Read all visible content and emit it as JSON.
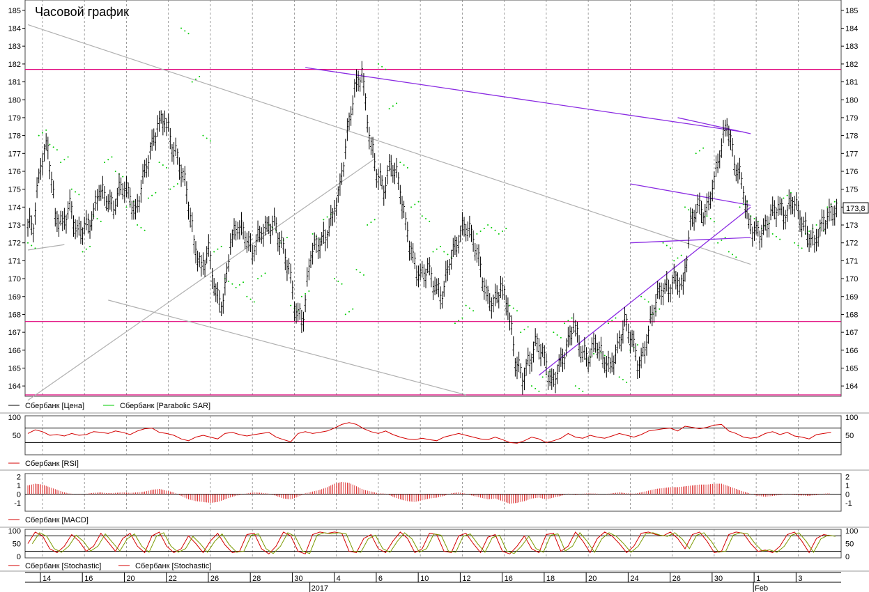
{
  "colors": {
    "price": "#000000",
    "sar": "#00cc00",
    "indicator": "#d40000",
    "stoch_signal": "#7a9a00",
    "hline": "#e0007a",
    "trend_purple": "#8a2be2",
    "trend_gray": "#b0b0b0",
    "grid": "#888888"
  },
  "chart_data": [
    {
      "type": "candlestick",
      "title": "Часовой график",
      "ylim": [
        163.5,
        185.5
      ],
      "yticks": [
        164,
        165,
        166,
        167,
        168,
        169,
        170,
        171,
        172,
        173,
        174,
        175,
        176,
        177,
        178,
        179,
        180,
        181,
        182,
        183,
        184,
        185
      ],
      "last_price_label": "173,8",
      "legend": [
        "Сбербанк [Цена]",
        "Сбербанк [Parabolic SAR]"
      ],
      "series": [
        {
          "name": "Сбербанк [Цена]",
          "indicator": "price",
          "x": [
            0,
            2,
            4,
            6,
            8,
            10,
            12,
            14,
            16,
            18,
            20,
            22,
            24,
            26,
            28,
            30,
            32,
            34,
            36,
            38,
            40,
            42,
            44,
            46,
            48,
            50,
            52,
            54,
            56,
            58,
            60,
            62,
            64,
            66,
            68,
            70,
            72,
            74,
            76,
            78,
            80,
            82,
            84,
            86,
            88,
            90,
            92,
            94,
            96,
            98,
            100,
            102,
            104,
            106,
            108,
            110,
            112,
            114,
            116,
            118,
            120,
            122,
            124,
            126,
            128,
            130,
            132,
            134,
            136,
            138,
            140,
            142,
            144,
            146,
            148,
            150,
            152,
            154,
            156,
            158,
            160,
            162,
            164,
            166,
            168,
            170,
            172,
            174,
            176,
            178,
            180,
            182,
            184,
            186,
            188,
            190,
            192,
            194,
            196,
            198
          ],
          "close": [
            173,
            176.5,
            177.5,
            173.5,
            173,
            174,
            172.5,
            172.8,
            173.2,
            175,
            174.5,
            174,
            175.2,
            174.8,
            173.5,
            175.5,
            177,
            178.5,
            179,
            177.5,
            176.5,
            175,
            172,
            170.5,
            171.5,
            169,
            168.5,
            172,
            173,
            172.5,
            171.5,
            172.5,
            172.8,
            173,
            171.8,
            170.5,
            168,
            167.8,
            171.5,
            172,
            172.3,
            173.5,
            175,
            178,
            180.5,
            181.5,
            178,
            176,
            175,
            176.5,
            175.5,
            173,
            171,
            170,
            170.5,
            169.5,
            169,
            171,
            172,
            173,
            172.5,
            171,
            169,
            168.5,
            169.5,
            168.5,
            165.5,
            164.5,
            165.5,
            166.5,
            165.5,
            164,
            165,
            166,
            167.5,
            166,
            165.5,
            166.5,
            165.5,
            165,
            166,
            167.5,
            166.5,
            165,
            166.5,
            168.5,
            169.5,
            169.5,
            170,
            169.5,
            173,
            174,
            173.5,
            175,
            177,
            178.8,
            176.5,
            175.5,
            173,
            172.5
          ],
          "extra_x": [
            200,
            202,
            204,
            206,
            208,
            210,
            212,
            214,
            216,
            218,
            220
          ],
          "extra_close": [
            172.5,
            173.5,
            174,
            173.5,
            174.5,
            173.5,
            172.5,
            172,
            173,
            173.5,
            173.8
          ]
        }
      ],
      "sar_points": {
        "x": [
          0,
          3,
          6,
          9,
          12,
          15,
          18,
          21,
          24,
          27,
          30,
          33,
          36,
          39,
          42,
          45,
          48,
          51,
          54,
          57,
          60,
          63,
          66,
          69,
          72,
          75,
          78,
          81,
          84,
          87,
          90,
          93,
          96,
          99,
          102,
          105,
          108,
          111,
          114,
          117,
          120,
          123,
          126,
          129,
          132,
          135,
          138,
          141,
          144,
          147,
          150,
          153,
          156,
          159,
          162,
          165,
          168,
          171,
          174,
          177,
          180,
          183,
          186,
          189,
          192,
          195,
          198,
          201,
          204,
          207,
          210,
          213,
          216,
          219
        ],
        "y": [
          172,
          178,
          177.5,
          176.5,
          175,
          171.5,
          173.5,
          176.5,
          176,
          174,
          173,
          174.5,
          176.5,
          175,
          184,
          181,
          178,
          171.5,
          170,
          169.5,
          169,
          170,
          173,
          172,
          168.5,
          169,
          172.5,
          173.3,
          170,
          168,
          170.5,
          173,
          182,
          179.5,
          176.5,
          174,
          173.5,
          171.5,
          171.5,
          167.5,
          168.5,
          172.5,
          173,
          172.5,
          168.5,
          167,
          164,
          164.5,
          167,
          167.5,
          164,
          165.5,
          166,
          167.5,
          164.5,
          166,
          169,
          168,
          172,
          171,
          174,
          177,
          173.5,
          172,
          171.5,
          174,
          173.5,
          172.8,
          172.5,
          174.5,
          172,
          172.5,
          173,
          174
        ]
      },
      "lines": {
        "horizontal": [
          181.7,
          167.6,
          163.5
        ],
        "purple_trend": [
          [
            76,
            181.8,
            196,
            178.2
          ],
          [
            178,
            179,
            198,
            178.1
          ]
        ],
        "triangle": [
          [
            165,
            175.3,
            198,
            174.1
          ],
          [
            165,
            172,
            198,
            172.3
          ],
          [
            140,
            164.6,
            198,
            174
          ]
        ],
        "gray_trend": [
          [
            0,
            184.2,
            198,
            170.8
          ],
          [
            0,
            171.6,
            10,
            171.9
          ],
          [
            22,
            168.8,
            120,
            163.5
          ],
          [
            0,
            163.2,
            95,
            176.7
          ]
        ]
      }
    },
    {
      "type": "line",
      "legend": [
        "Сбербанк [RSI]"
      ],
      "ylim": [
        0,
        100
      ],
      "yticks": [
        50,
        100
      ],
      "hlines": [
        70,
        30
      ],
      "series": [
        {
          "name": "Сбербанк [RSI]",
          "values": [
            55,
            65,
            60,
            50,
            52,
            48,
            55,
            50,
            52,
            60,
            58,
            55,
            62,
            58,
            52,
            62,
            68,
            70,
            58,
            55,
            50,
            40,
            35,
            45,
            50,
            45,
            40,
            55,
            58,
            52,
            48,
            52,
            55,
            58,
            45,
            38,
            32,
            55,
            60,
            55,
            58,
            62,
            70,
            80,
            85,
            80,
            68,
            60,
            55,
            62,
            52,
            45,
            40,
            38,
            42,
            38,
            35,
            45,
            50,
            55,
            50,
            45,
            40,
            38,
            45,
            38,
            30,
            28,
            35,
            45,
            40,
            30,
            35,
            42,
            55,
            45,
            42,
            50,
            45,
            42,
            48,
            55,
            50,
            45,
            52,
            62,
            65,
            68,
            70,
            62,
            75,
            72,
            68,
            72,
            78,
            80,
            62,
            55,
            45,
            42,
            45,
            55,
            60,
            52,
            58,
            48,
            45,
            40,
            52,
            55,
            58
          ]
        }
      ]
    },
    {
      "type": "bar",
      "legend": [
        "Сбербанк [MACD]"
      ],
      "ylim": [
        -1.8,
        2.2
      ],
      "yticks": [
        2,
        1,
        0,
        -1
      ],
      "series": [
        {
          "name": "Сбербанк [MACD]",
          "values": [
            1,
            1.2,
            1.1,
            0.8,
            0.5,
            0.2,
            0.05,
            -0.05,
            0.05,
            0.15,
            0.2,
            0.1,
            0.15,
            0.2,
            0.15,
            0.2,
            0.3,
            0.5,
            0.6,
            0.4,
            0.2,
            -0.2,
            -0.6,
            -0.8,
            -0.9,
            -1,
            -0.9,
            -0.6,
            -0.3,
            -0.1,
            0.1,
            0.2,
            0.15,
            0.05,
            -0.2,
            -0.5,
            -0.6,
            -0.3,
            0.1,
            0.3,
            0.5,
            0.8,
            1.2,
            1.4,
            1.3,
            0.9,
            0.5,
            0.3,
            0.1,
            0.05,
            -0.3,
            -0.6,
            -0.8,
            -0.9,
            -0.7,
            -0.5,
            -0.4,
            -0.2,
            0.1,
            0.2,
            0.05,
            -0.2,
            -0.4,
            -0.6,
            -0.5,
            -0.8,
            -1.1,
            -1,
            -0.8,
            -0.5,
            -0.4,
            -0.6,
            -0.4,
            -0.2,
            0.05,
            -0.1,
            0.05,
            0.1,
            0.05,
            0,
            0.1,
            0.2,
            0.1,
            0.05,
            0.2,
            0.4,
            0.6,
            0.7,
            0.8,
            0.8,
            0.9,
            1,
            1.1,
            1.1,
            1.2,
            1.2,
            0.9,
            0.6,
            0.3,
            0.05,
            -0.2,
            -0.3,
            -0.2,
            -0.1,
            0.05,
            -0.1,
            -0.15,
            -0.2,
            -0.1,
            0.05,
            0.1
          ]
        }
      ]
    },
    {
      "type": "line",
      "legend": [
        "Сбербанк [Stochastic]",
        "Сбербанк [Stochastic]"
      ],
      "ylim": [
        0,
        100
      ],
      "yticks": [
        100,
        50,
        0
      ],
      "hlines": [
        80,
        20
      ],
      "series": [
        {
          "name": "Сбербанк [Stochastic]",
          "values": [
            50,
            95,
            80,
            30,
            15,
            40,
            85,
            60,
            20,
            40,
            90,
            55,
            20,
            70,
            90,
            40,
            15,
            80,
            95,
            40,
            15,
            30,
            80,
            50,
            15,
            60,
            90,
            45,
            15,
            20,
            85,
            90,
            30,
            10,
            40,
            95,
            80,
            20,
            10,
            85,
            95,
            90,
            95,
            90,
            20,
            15,
            70,
            85,
            30,
            15,
            60,
            95,
            70,
            15,
            30,
            90,
            85,
            20,
            15,
            80,
            90,
            50,
            15,
            75,
            85,
            20,
            10,
            40,
            80,
            30,
            15,
            85,
            90,
            20,
            40,
            95,
            60,
            15,
            70,
            95,
            80,
            50,
            15,
            40,
            90,
            95,
            85,
            80,
            95,
            70,
            30,
            85,
            95,
            60,
            15,
            20,
            85,
            95,
            90,
            50,
            20,
            25,
            15,
            40,
            85,
            95,
            60,
            15,
            70,
            85,
            80
          ]
        }
      ]
    }
  ],
  "x_axis": {
    "ticks": [
      "14",
      "16",
      "20",
      "22",
      "26",
      "28",
      "30",
      "4",
      "6",
      "10",
      "12",
      "16",
      "18",
      "20",
      "24",
      "26",
      "30",
      "1",
      "3"
    ],
    "months": [
      "2017",
      "Feb"
    ]
  }
}
